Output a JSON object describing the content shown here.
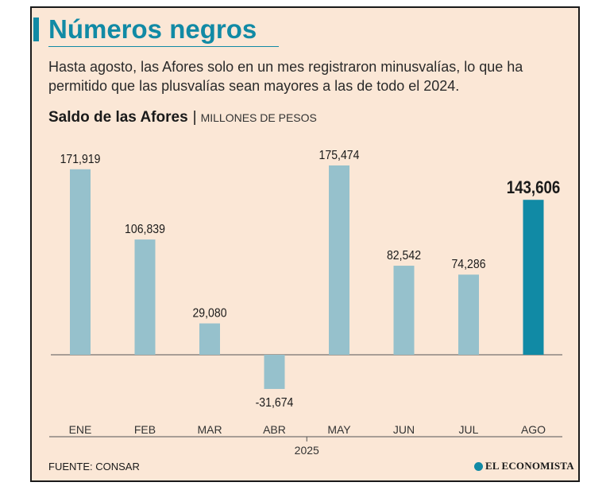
{
  "header": {
    "title": "Números negros",
    "subtitle": "Hasta agosto, las Afores solo en un mes registraron minusvalías, lo que ha permitido que las plusvalías sean mayores a las de todo el 2024."
  },
  "chart_data": {
    "type": "bar",
    "title": "Saldo de las Afores",
    "separator": "|",
    "unit_label": "MILLONES DE PESOS",
    "categories": [
      "ENE",
      "FEB",
      "MAR",
      "ABR",
      "MAY",
      "JUN",
      "JUL",
      "AGO"
    ],
    "values": [
      171919,
      106839,
      29080,
      -31674,
      175474,
      82542,
      74286,
      143606
    ],
    "labels": [
      "171,919",
      "106,839",
      "29,080",
      "-31,674",
      "175,474",
      "82,542",
      "74,286",
      "143,606"
    ],
    "highlight_index": 7,
    "xlabel": "2025",
    "ylabel": "",
    "ylim": [
      -31674,
      175474
    ],
    "colors": {
      "bar": "#96c1cc",
      "highlight": "#118aa5",
      "baseline": "#555555"
    }
  },
  "footer": {
    "source": "FUENTE: CONSAR",
    "brand": "EL ECONOMISTA"
  }
}
